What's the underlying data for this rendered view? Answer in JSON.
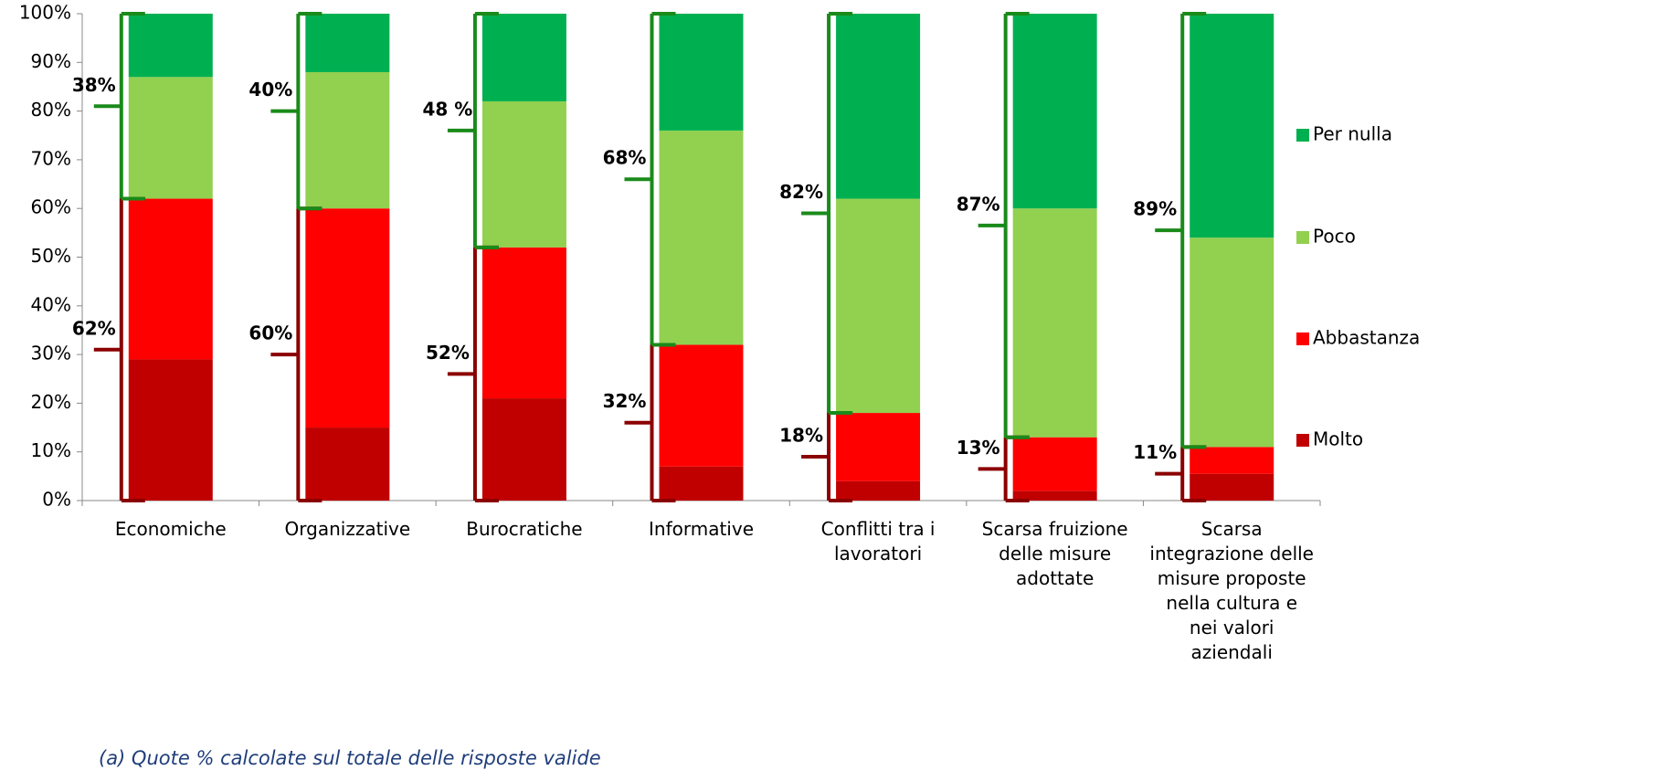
{
  "chart_data": {
    "type": "stacked_bar",
    "categories": [
      "Economiche",
      "Organizzative",
      "Burocratiche",
      "Informative",
      "Conflitti tra i lavoratori",
      "Scarsa fruizione delle misure adottate",
      "Scarsa integrazione delle misure proposte nella cultura e nei valori aziendali"
    ],
    "series": [
      {
        "name": "Molto",
        "color": "#c00000",
        "values": [
          29,
          15,
          21,
          7,
          4,
          2,
          5.5
        ]
      },
      {
        "name": "Abbastanza",
        "color": "#ff0000",
        "values": [
          33,
          45,
          31,
          25,
          14,
          11,
          5.5
        ]
      },
      {
        "name": "Poco",
        "color": "#92d050",
        "values": [
          25,
          28,
          30,
          44,
          44,
          47,
          43
        ]
      },
      {
        "name": "Per nulla",
        "color": "#00b050",
        "values": [
          13,
          12,
          18,
          24,
          38,
          40,
          46
        ]
      }
    ],
    "group_labels": {
      "low": {
        "color": "#8b0000",
        "labels": [
          "62%",
          "60%",
          "52%",
          "32%",
          "18%",
          "13%",
          "11%"
        ]
      },
      "high": {
        "color": "#1a8a1a",
        "labels": [
          "38%",
          "40%",
          "48 %",
          "68%",
          "82%",
          "87%",
          "89%"
        ]
      }
    },
    "ylim": [
      0,
      100
    ],
    "yticks": [
      {
        "value": 0,
        "label": "0%"
      },
      {
        "value": 10,
        "label": "10%"
      },
      {
        "value": 20,
        "label": "20%"
      },
      {
        "value": 30,
        "label": "30%"
      },
      {
        "value": 40,
        "label": "40%"
      },
      {
        "value": 50,
        "label": "50%"
      },
      {
        "value": 60,
        "label": "60%"
      },
      {
        "value": 70,
        "label": "70%"
      },
      {
        "value": 80,
        "label": "80%"
      },
      {
        "value": 90,
        "label": "90%"
      },
      {
        "value": 100,
        "label": "100%"
      }
    ],
    "legend": "right",
    "note": "(a) Quote % calcolate sul totale delle risposte valide"
  }
}
